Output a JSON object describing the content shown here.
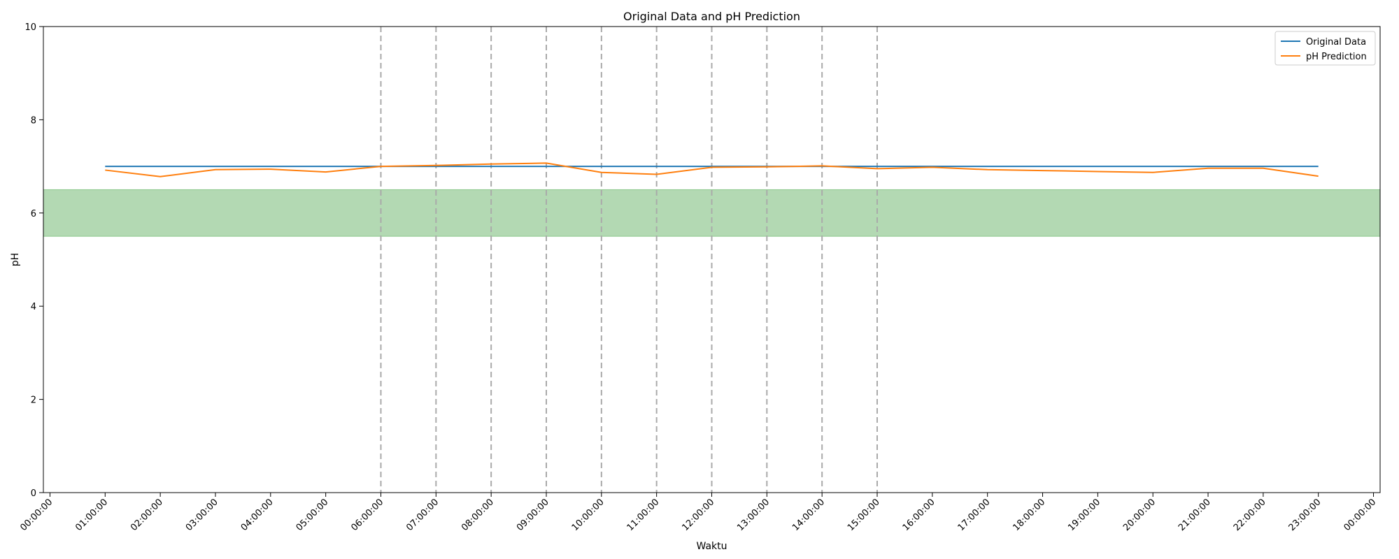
{
  "chart_data": {
    "type": "line",
    "title": "Original Data and pH Prediction",
    "xlabel": "Waktu",
    "ylabel": "pH",
    "ylim": [
      0,
      10
    ],
    "yticks": [
      "0",
      "2",
      "4",
      "6",
      "8",
      "10"
    ],
    "xlim": [
      "00:00:00",
      "24:00:00"
    ],
    "xticks": [
      "00:00:00",
      "01:00:00",
      "02:00:00",
      "03:00:00",
      "04:00:00",
      "05:00:00",
      "06:00:00",
      "07:00:00",
      "08:00:00",
      "09:00:00",
      "10:00:00",
      "11:00:00",
      "12:00:00",
      "13:00:00",
      "14:00:00",
      "15:00:00",
      "16:00:00",
      "17:00:00",
      "18:00:00",
      "19:00:00",
      "20:00:00",
      "21:00:00",
      "22:00:00",
      "23:00:00",
      "00:00:00"
    ],
    "highlighted_ticks": [
      "06:00:00",
      "07:00:00",
      "08:00:00",
      "09:00:00",
      "10:00:00",
      "11:00:00",
      "12:00:00",
      "13:00:00",
      "14:00:00",
      "15:00:00"
    ],
    "vertical_lines": [
      "06:00:00",
      "07:00:00",
      "08:00:00",
      "09:00:00",
      "10:00:00",
      "11:00:00",
      "12:00:00",
      "13:00:00",
      "14:00:00",
      "15:00:00"
    ],
    "band": {
      "from": 5.5,
      "to": 6.5,
      "color": "#b3d9b3"
    },
    "x": [
      "01:00:00",
      "02:00:00",
      "03:00:00",
      "04:00:00",
      "05:00:00",
      "06:00:00",
      "07:00:00",
      "08:00:00",
      "09:00:00",
      "10:00:00",
      "11:00:00",
      "12:00:00",
      "13:00:00",
      "14:00:00",
      "15:00:00",
      "16:00:00",
      "17:00:00",
      "18:00:00",
      "19:00:00",
      "20:00:00",
      "21:00:00",
      "22:00:00",
      "23:00:00"
    ],
    "series": [
      {
        "name": "Original Data",
        "color": "#1f77b4",
        "values": [
          7.0,
          7.0,
          7.0,
          7.0,
          7.0,
          7.0,
          7.0,
          7.0,
          7.0,
          7.0,
          7.0,
          7.0,
          7.0,
          7.0,
          7.0,
          7.0,
          7.0,
          7.0,
          7.0,
          7.0,
          7.0,
          7.0,
          7.0
        ]
      },
      {
        "name": "pH Prediction",
        "color": "#ff7f0e",
        "values": [
          6.92,
          6.78,
          6.93,
          6.94,
          6.88,
          7.0,
          7.02,
          7.05,
          7.07,
          6.87,
          6.83,
          6.98,
          6.99,
          7.01,
          6.95,
          6.98,
          6.93,
          6.91,
          6.89,
          6.87,
          6.96,
          6.96,
          6.79
        ]
      }
    ],
    "legend_position": "top-right",
    "highlight_color": "#ff0000",
    "grid": false
  }
}
